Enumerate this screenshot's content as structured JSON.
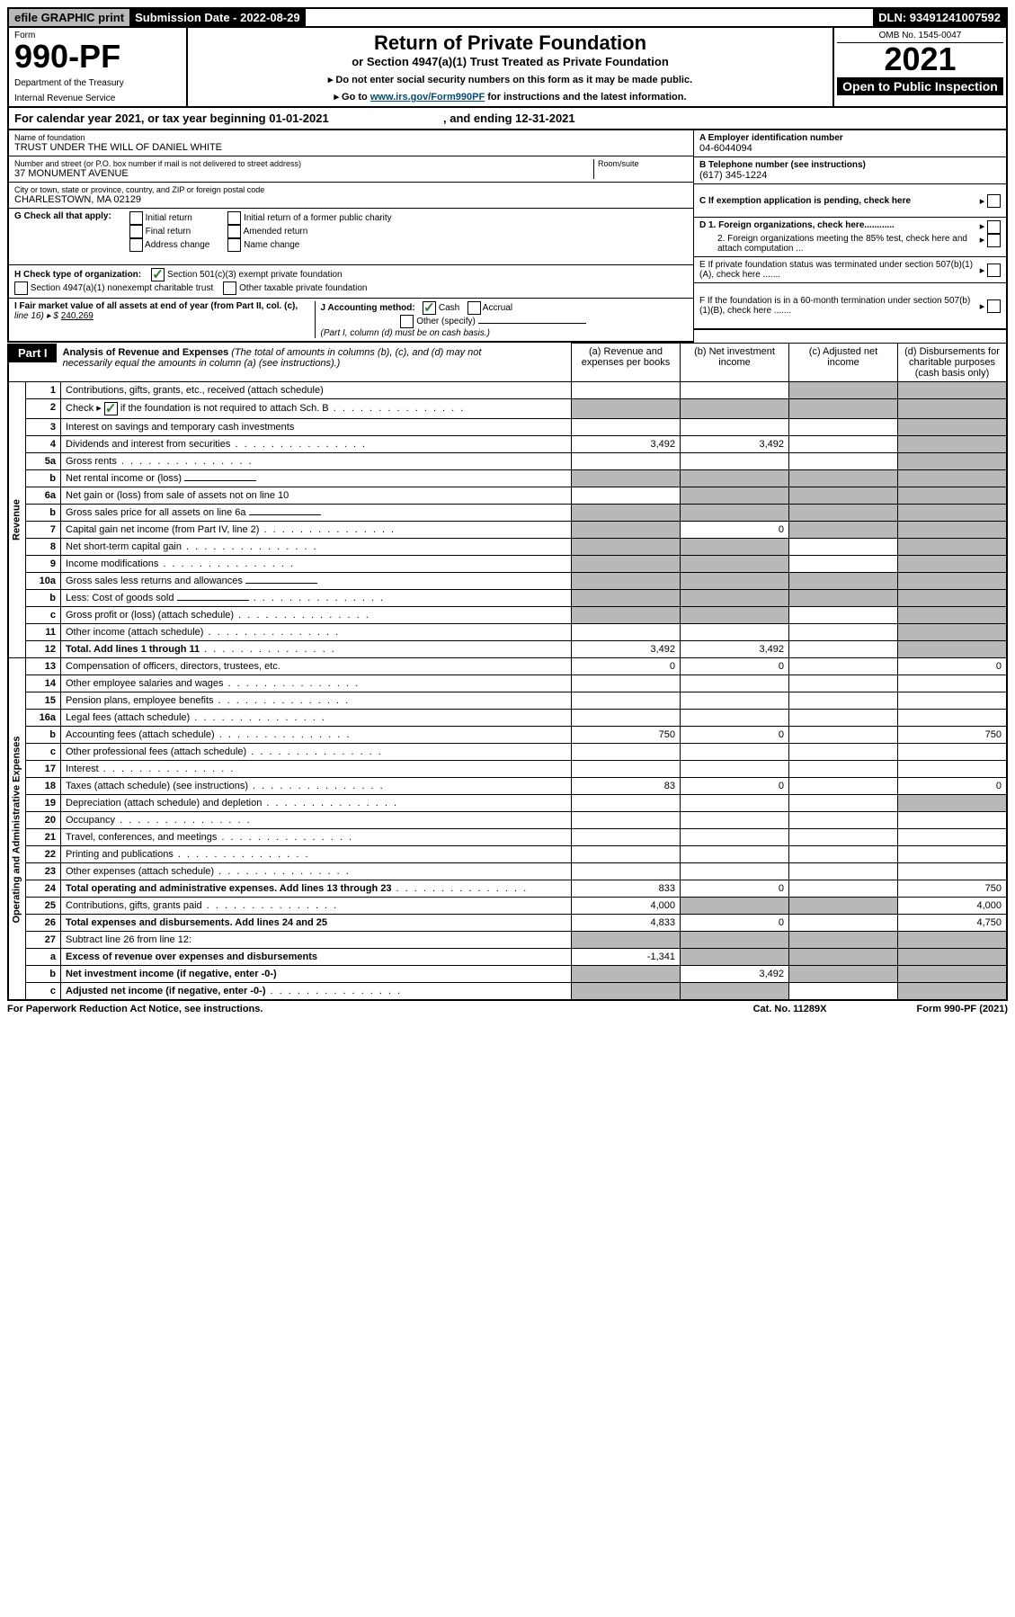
{
  "topbar": {
    "efile": "efile GRAPHIC print",
    "submission_label": "Submission Date - 2022-08-29",
    "dln": "DLN: 93491241007592"
  },
  "header": {
    "form_label": "Form",
    "form_number": "990-PF",
    "dept1": "Department of the Treasury",
    "dept2": "Internal Revenue Service",
    "title": "Return of Private Foundation",
    "subtitle": "or Section 4947(a)(1) Trust Treated as Private Foundation",
    "instr1": "▸ Do not enter social security numbers on this form as it may be made public.",
    "instr2_prefix": "▸ Go to ",
    "instr2_link": "www.irs.gov/Form990PF",
    "instr2_suffix": " for instructions and the latest information.",
    "omb": "OMB No. 1545-0047",
    "year": "2021",
    "open": "Open to Public Inspection"
  },
  "calendar": {
    "text_a": "For calendar year 2021, or tax year beginning 01-01-2021",
    "text_b": ", and ending 12-31-2021"
  },
  "foundation": {
    "name_label": "Name of foundation",
    "name": "TRUST UNDER THE WILL OF DANIEL WHITE",
    "addr_label": "Number and street (or P.O. box number if mail is not delivered to street address)",
    "room_label": "Room/suite",
    "addr": "37 MONUMENT AVENUE",
    "city_label": "City or town, state or province, country, and ZIP or foreign postal code",
    "city": "CHARLESTOWN, MA  02129",
    "ein_label": "A Employer identification number",
    "ein": "04-6044094",
    "phone_label": "B Telephone number (see instructions)",
    "phone": "(617) 345-1224",
    "c_label": "C If exemption application is pending, check here",
    "d1": "D 1. Foreign organizations, check here............",
    "d2": "2. Foreign organizations meeting the 85% test, check here and attach computation ...",
    "e_label": "E  If private foundation status was terminated under section 507(b)(1)(A), check here .......",
    "f_label": "F  If the foundation is in a 60-month termination under section 507(b)(1)(B), check here .......",
    "g_label": "G Check all that apply:",
    "g_opts": [
      "Initial return",
      "Final return",
      "Address change",
      "Initial return of a former public charity",
      "Amended return",
      "Name change"
    ],
    "h_label": "H Check type of organization:",
    "h_opt1": "Section 501(c)(3) exempt private foundation",
    "h_opt2": "Section 4947(a)(1) nonexempt charitable trust",
    "h_opt3": "Other taxable private foundation",
    "i_label": "I Fair market value of all assets at end of year (from Part II, col. (c),",
    "i_line": "line 16) ▸ $",
    "i_val": "240,269",
    "j_label": "J Accounting method:",
    "j_cash": "Cash",
    "j_accrual": "Accrual",
    "j_other": "Other (specify)",
    "j_note": "(Part I, column (d) must be on cash basis.)"
  },
  "part1": {
    "label": "Part I",
    "title": "Analysis of Revenue and Expenses",
    "title_note": " (The total of amounts in columns (b), (c), and (d) may not necessarily equal the amounts in column (a) (see instructions).)",
    "col_a": "(a)   Revenue and expenses per books",
    "col_b": "(b)   Net investment income",
    "col_c": "(c)   Adjusted net income",
    "col_d": "(d)  Disbursements for charitable purposes (cash basis only)",
    "revenue_label": "Revenue",
    "expenses_label": "Operating and Administrative Expenses",
    "rows": [
      {
        "n": "1",
        "desc": "Contributions, gifts, grants, etc., received (attach schedule)",
        "a": "",
        "b": "",
        "c": "G",
        "d": "G"
      },
      {
        "n": "2",
        "desc": "Check ▸ ☑ if the foundation is not required to attach Sch. B",
        "a": "G",
        "b": "G",
        "c": "G",
        "d": "G",
        "dots": true
      },
      {
        "n": "3",
        "desc": "Interest on savings and temporary cash investments",
        "a": "",
        "b": "",
        "c": "",
        "d": "G"
      },
      {
        "n": "4",
        "desc": "Dividends and interest from securities",
        "a": "3,492",
        "b": "3,492",
        "c": "",
        "d": "G",
        "dots": true
      },
      {
        "n": "5a",
        "desc": "Gross rents",
        "a": "",
        "b": "",
        "c": "",
        "d": "G",
        "dots": true
      },
      {
        "n": "b",
        "desc": "Net rental income or (loss)",
        "a": "G",
        "b": "G",
        "c": "G",
        "d": "G",
        "inline": true
      },
      {
        "n": "6a",
        "desc": "Net gain or (loss) from sale of assets not on line 10",
        "a": "",
        "b": "G",
        "c": "G",
        "d": "G"
      },
      {
        "n": "b",
        "desc": "Gross sales price for all assets on line 6a",
        "a": "G",
        "b": "G",
        "c": "G",
        "d": "G",
        "inline": true
      },
      {
        "n": "7",
        "desc": "Capital gain net income (from Part IV, line 2)",
        "a": "G",
        "b": "0",
        "c": "G",
        "d": "G",
        "dots": true
      },
      {
        "n": "8",
        "desc": "Net short-term capital gain",
        "a": "G",
        "b": "G",
        "c": "",
        "d": "G",
        "dots": true
      },
      {
        "n": "9",
        "desc": "Income modifications",
        "a": "G",
        "b": "G",
        "c": "",
        "d": "G",
        "dots": true
      },
      {
        "n": "10a",
        "desc": "Gross sales less returns and allowances",
        "a": "G",
        "b": "G",
        "c": "G",
        "d": "G",
        "inline": true
      },
      {
        "n": "b",
        "desc": "Less: Cost of goods sold",
        "a": "G",
        "b": "G",
        "c": "G",
        "d": "G",
        "inline": true,
        "dots": true
      },
      {
        "n": "c",
        "desc": "Gross profit or (loss) (attach schedule)",
        "a": "G",
        "b": "G",
        "c": "",
        "d": "G",
        "dots": true
      },
      {
        "n": "11",
        "desc": "Other income (attach schedule)",
        "a": "",
        "b": "",
        "c": "",
        "d": "G",
        "dots": true
      },
      {
        "n": "12",
        "desc": "Total. Add lines 1 through 11",
        "a": "3,492",
        "b": "3,492",
        "c": "",
        "d": "G",
        "bold": true,
        "dots": true
      }
    ],
    "rows_exp": [
      {
        "n": "13",
        "desc": "Compensation of officers, directors, trustees, etc.",
        "a": "0",
        "b": "0",
        "c": "",
        "d": "0"
      },
      {
        "n": "14",
        "desc": "Other employee salaries and wages",
        "a": "",
        "b": "",
        "c": "",
        "d": "",
        "dots": true
      },
      {
        "n": "15",
        "desc": "Pension plans, employee benefits",
        "a": "",
        "b": "",
        "c": "",
        "d": "",
        "dots": true
      },
      {
        "n": "16a",
        "desc": "Legal fees (attach schedule)",
        "a": "",
        "b": "",
        "c": "",
        "d": "",
        "dots": true
      },
      {
        "n": "b",
        "desc": "Accounting fees (attach schedule)",
        "a": "750",
        "b": "0",
        "c": "",
        "d": "750",
        "dots": true
      },
      {
        "n": "c",
        "desc": "Other professional fees (attach schedule)",
        "a": "",
        "b": "",
        "c": "",
        "d": "",
        "dots": true
      },
      {
        "n": "17",
        "desc": "Interest",
        "a": "",
        "b": "",
        "c": "",
        "d": "",
        "dots": true
      },
      {
        "n": "18",
        "desc": "Taxes (attach schedule) (see instructions)",
        "a": "83",
        "b": "0",
        "c": "",
        "d": "0",
        "dots": true
      },
      {
        "n": "19",
        "desc": "Depreciation (attach schedule) and depletion",
        "a": "",
        "b": "",
        "c": "",
        "d": "G",
        "dots": true
      },
      {
        "n": "20",
        "desc": "Occupancy",
        "a": "",
        "b": "",
        "c": "",
        "d": "",
        "dots": true
      },
      {
        "n": "21",
        "desc": "Travel, conferences, and meetings",
        "a": "",
        "b": "",
        "c": "",
        "d": "",
        "dots": true
      },
      {
        "n": "22",
        "desc": "Printing and publications",
        "a": "",
        "b": "",
        "c": "",
        "d": "",
        "dots": true
      },
      {
        "n": "23",
        "desc": "Other expenses (attach schedule)",
        "a": "",
        "b": "",
        "c": "",
        "d": "",
        "dots": true
      },
      {
        "n": "24",
        "desc": "Total operating and administrative expenses. Add lines 13 through 23",
        "a": "833",
        "b": "0",
        "c": "",
        "d": "750",
        "bold": true,
        "dots": true
      },
      {
        "n": "25",
        "desc": "Contributions, gifts, grants paid",
        "a": "4,000",
        "b": "G",
        "c": "G",
        "d": "4,000",
        "dots": true
      },
      {
        "n": "26",
        "desc": "Total expenses and disbursements. Add lines 24 and 25",
        "a": "4,833",
        "b": "0",
        "c": "",
        "d": "4,750",
        "bold": true
      },
      {
        "n": "27",
        "desc": "Subtract line 26 from line 12:",
        "a": "G",
        "b": "G",
        "c": "G",
        "d": "G"
      },
      {
        "n": "a",
        "desc": "Excess of revenue over expenses and disbursements",
        "a": "-1,341",
        "b": "G",
        "c": "G",
        "d": "G",
        "bold": true
      },
      {
        "n": "b",
        "desc": "Net investment income (if negative, enter -0-)",
        "a": "G",
        "b": "3,492",
        "c": "G",
        "d": "G",
        "bold": true
      },
      {
        "n": "c",
        "desc": "Adjusted net income (if negative, enter -0-)",
        "a": "G",
        "b": "G",
        "c": "",
        "d": "G",
        "bold": true,
        "dots": true
      }
    ]
  },
  "footer": {
    "left": "For Paperwork Reduction Act Notice, see instructions.",
    "mid": "Cat. No. 11289X",
    "right": "Form 990-PF (2021)"
  }
}
